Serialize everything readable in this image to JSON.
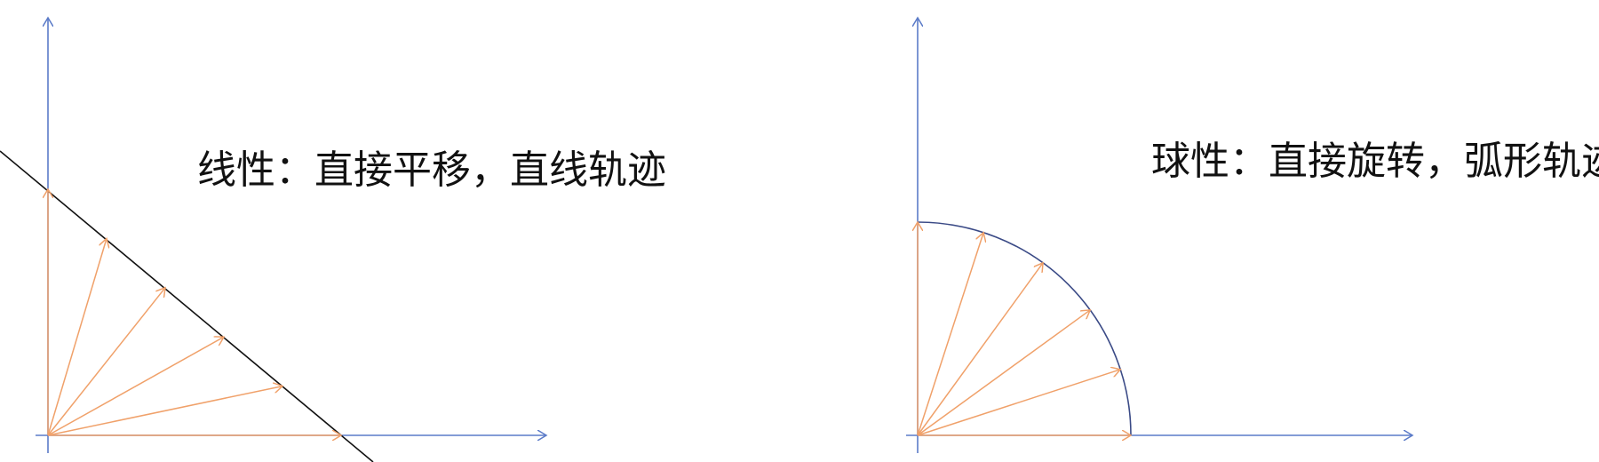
{
  "panels": [
    {
      "caption": "线性：直接平移，直线轨迹",
      "kind": "linear",
      "vector_count": 6
    },
    {
      "caption": "球性：直接旋转，弧形轨迹",
      "kind": "spherical",
      "vector_count": 6
    }
  ],
  "colors": {
    "axis": "#5b7bc8",
    "vector": "#f0a16a",
    "linear_path": "#111111",
    "arc_path": "#3a4a86",
    "text": "#111111"
  }
}
